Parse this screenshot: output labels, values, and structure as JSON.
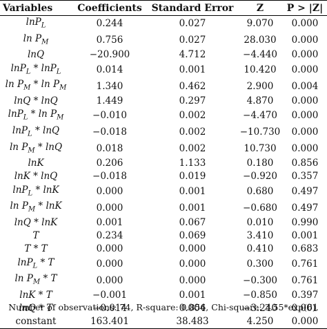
{
  "table": {
    "headers": [
      "Variables",
      "Coefficients",
      "Standard Error",
      "Z",
      "P > |Z|"
    ],
    "rows": [
      {
        "variable": "lnP_L",
        "coef": "0.244",
        "se": "0.027",
        "z": "9.070",
        "p": "0.000"
      },
      {
        "variable": "ln P_M",
        "coef": "0.756",
        "se": "0.027",
        "z": "28.030",
        "p": "0.000"
      },
      {
        "variable": "lnQ",
        "coef": "−20.900",
        "se": "4.712",
        "z": "−4.440",
        "p": "0.000"
      },
      {
        "variable": "lnP_L * lnP_L",
        "coef": "0.014",
        "se": "0.001",
        "z": "10.420",
        "p": "0.000"
      },
      {
        "variable": "ln P_M * ln P_M",
        "coef": "1.340",
        "se": "0.462",
        "z": "2.900",
        "p": "0.004"
      },
      {
        "variable": "lnQ * lnQ",
        "coef": "1.449",
        "se": "0.297",
        "z": "4.870",
        "p": "0.000"
      },
      {
        "variable": "lnP_L * ln P_M",
        "coef": "−0.010",
        "se": "0.002",
        "z": "−4.470",
        "p": "0.000"
      },
      {
        "variable": "lnP_L * lnQ",
        "coef": "−0.018",
        "se": "0.002",
        "z": "−10.730",
        "p": "0.000"
      },
      {
        "variable": "ln P_M * lnQ",
        "coef": "0.018",
        "se": "0.002",
        "z": "10.730",
        "p": "0.000"
      },
      {
        "variable": "lnK",
        "coef": "0.206",
        "se": "1.133",
        "z": "0.180",
        "p": "0.856"
      },
      {
        "variable": "lnK * lnQ",
        "coef": "−0.018",
        "se": "0.019",
        "z": "−0.920",
        "p": "0.357"
      },
      {
        "variable": "lnP_L * lnK",
        "coef": "0.000",
        "se": "0.001",
        "z": "0.680",
        "p": "0.497"
      },
      {
        "variable": "ln P_M * lnK",
        "coef": "0.000",
        "se": "0.001",
        "z": "−0.680",
        "p": "0.497"
      },
      {
        "variable": "lnQ * lnK",
        "coef": "0.001",
        "se": "0.067",
        "z": "0.010",
        "p": "0.990"
      },
      {
        "variable": "T",
        "coef": "0.234",
        "se": "0.069",
        "z": "3.410",
        "p": "0.001"
      },
      {
        "variable": "T * T",
        "coef": "0.000",
        "se": "0.000",
        "z": "0.410",
        "p": "0.683"
      },
      {
        "variable": "lnP_L * T",
        "coef": "0.000",
        "se": "0.000",
        "z": "0.300",
        "p": "0.761"
      },
      {
        "variable": "ln P_M * T",
        "coef": "0.000",
        "se": "0.000",
        "z": "−0.300",
        "p": "0.761"
      },
      {
        "variable": "lnK * T",
        "coef": "−0.001",
        "se": "0.001",
        "z": "−0.850",
        "p": "0.397"
      },
      {
        "variable": "lnQ * T",
        "coef": "−0.014",
        "se": "0.004",
        "z": "−3.240",
        "p": "0.001"
      },
      {
        "variable": "constant",
        "coef": "163.401",
        "se": "38.483",
        "z": "4.250",
        "p": "0.000"
      }
    ]
  },
  "footnote": "Number of observations: 74, R-square: 0.856, Chi-square: 3.55*exp(6)."
}
